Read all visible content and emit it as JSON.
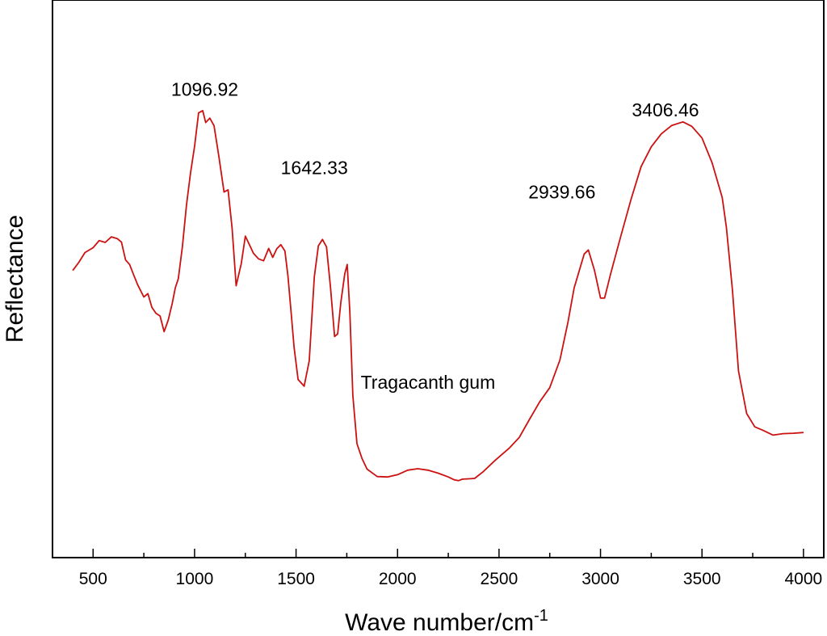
{
  "chart_data": {
    "type": "line",
    "xlabel": "Wave number/cm",
    "xlabel_sup": "-1",
    "ylabel": "Reflectance",
    "xlim": [
      300,
      4100
    ],
    "ylim": [
      0,
      100
    ],
    "x_ticks_major": [
      500,
      1000,
      1500,
      2000,
      2500,
      3000,
      3500,
      4000
    ],
    "x_ticks_major_labels": [
      "500",
      "1000",
      "1500",
      "2000",
      "2500",
      "3000",
      "3500",
      "4000"
    ],
    "x_ticks_minor": [
      750,
      1250,
      1750,
      2250,
      2750,
      3250,
      3750
    ],
    "y_ticks": [],
    "grid": false,
    "series_color": "#cc1111",
    "series": [
      {
        "name": "",
        "points": [
          [
            400,
            55.7
          ],
          [
            430,
            57.9
          ],
          [
            460,
            60.5
          ],
          [
            500,
            61.8
          ],
          [
            530,
            63.7
          ],
          [
            560,
            63.2
          ],
          [
            590,
            64.7
          ],
          [
            620,
            64.2
          ],
          [
            640,
            63.3
          ],
          [
            660,
            58.5
          ],
          [
            680,
            57.3
          ],
          [
            700,
            54.5
          ],
          [
            720,
            51.8
          ],
          [
            750,
            48.6
          ],
          [
            770,
            49.5
          ],
          [
            790,
            45.8
          ],
          [
            810,
            44.2
          ],
          [
            830,
            43.5
          ],
          [
            850,
            39.3
          ],
          [
            870,
            42.4
          ],
          [
            890,
            46.9
          ],
          [
            905,
            51.0
          ],
          [
            920,
            53.5
          ],
          [
            940,
            62.0
          ],
          [
            960,
            73.2
          ],
          [
            980,
            81.8
          ],
          [
            1000,
            88.9
          ],
          [
            1020,
            97.9
          ],
          [
            1040,
            98.5
          ],
          [
            1055,
            95.3
          ],
          [
            1075,
            96.5
          ],
          [
            1096,
            94.5
          ],
          [
            1120,
            86.1
          ],
          [
            1145,
            76.7
          ],
          [
            1165,
            77.3
          ],
          [
            1185,
            67.0
          ],
          [
            1205,
            51.6
          ],
          [
            1230,
            57.5
          ],
          [
            1250,
            64.9
          ],
          [
            1270,
            62.6
          ],
          [
            1290,
            60.3
          ],
          [
            1315,
            58.8
          ],
          [
            1340,
            58.3
          ],
          [
            1365,
            61.6
          ],
          [
            1385,
            59.2
          ],
          [
            1405,
            61.5
          ],
          [
            1425,
            62.6
          ],
          [
            1445,
            60.9
          ],
          [
            1460,
            54.3
          ],
          [
            1475,
            44.9
          ],
          [
            1490,
            35.2
          ],
          [
            1510,
            26.5
          ],
          [
            1540,
            24.7
          ],
          [
            1565,
            31.5
          ],
          [
            1590,
            54.0
          ],
          [
            1610,
            62.3
          ],
          [
            1630,
            64.0
          ],
          [
            1650,
            62.0
          ],
          [
            1670,
            51.0
          ],
          [
            1690,
            38.0
          ],
          [
            1705,
            38.7
          ],
          [
            1720,
            46.9
          ],
          [
            1740,
            54.8
          ],
          [
            1752,
            57.3
          ],
          [
            1765,
            44.5
          ],
          [
            1780,
            22.2
          ],
          [
            1800,
            9.3
          ],
          [
            1825,
            5.3
          ],
          [
            1850,
            2.5
          ],
          [
            1900,
            0.5
          ],
          [
            1950,
            0.4
          ],
          [
            2000,
            1.0
          ],
          [
            2050,
            2.2
          ],
          [
            2100,
            2.6
          ],
          [
            2150,
            2.2
          ],
          [
            2200,
            1.4
          ],
          [
            2250,
            0.4
          ],
          [
            2280,
            -0.4
          ],
          [
            2300,
            -0.6
          ],
          [
            2320,
            -0.2
          ],
          [
            2350,
            -0.1
          ],
          [
            2380,
            0.0
          ],
          [
            2420,
            1.7
          ],
          [
            2480,
            4.8
          ],
          [
            2550,
            8.1
          ],
          [
            2600,
            11.0
          ],
          [
            2650,
            15.8
          ],
          [
            2700,
            20.5
          ],
          [
            2750,
            24.3
          ],
          [
            2800,
            31.7
          ],
          [
            2840,
            41.9
          ],
          [
            2870,
            51.0
          ],
          [
            2900,
            56.5
          ],
          [
            2920,
            60.1
          ],
          [
            2940,
            61.2
          ],
          [
            2970,
            55.8
          ],
          [
            3000,
            48.3
          ],
          [
            3020,
            48.3
          ],
          [
            3050,
            54.8
          ],
          [
            3100,
            64.9
          ],
          [
            3150,
            74.7
          ],
          [
            3200,
            83.5
          ],
          [
            3250,
            88.8
          ],
          [
            3300,
            92.3
          ],
          [
            3350,
            94.5
          ],
          [
            3406,
            95.5
          ],
          [
            3450,
            94.3
          ],
          [
            3500,
            91.2
          ],
          [
            3550,
            84.5
          ],
          [
            3600,
            75.2
          ],
          [
            3620,
            67.3
          ],
          [
            3650,
            50.5
          ],
          [
            3680,
            28.8
          ],
          [
            3720,
            17.4
          ],
          [
            3760,
            13.8
          ],
          [
            3800,
            12.9
          ],
          [
            3850,
            11.6
          ],
          [
            3900,
            12.0
          ],
          [
            3950,
            12.1
          ],
          [
            4000,
            12.3
          ]
        ]
      }
    ],
    "annotations": [
      {
        "text": "1096.92",
        "x": 1050,
        "y": 102.5
      },
      {
        "text": "1642.33",
        "x": 1590,
        "y": 81.5
      },
      {
        "text": "2939.66",
        "x": 2810,
        "y": 75.0
      },
      {
        "text": "3406.46",
        "x": 3320,
        "y": 97.0
      },
      {
        "text": "Tragacanth gum",
        "x": 2150,
        "y": 24.0
      }
    ]
  }
}
